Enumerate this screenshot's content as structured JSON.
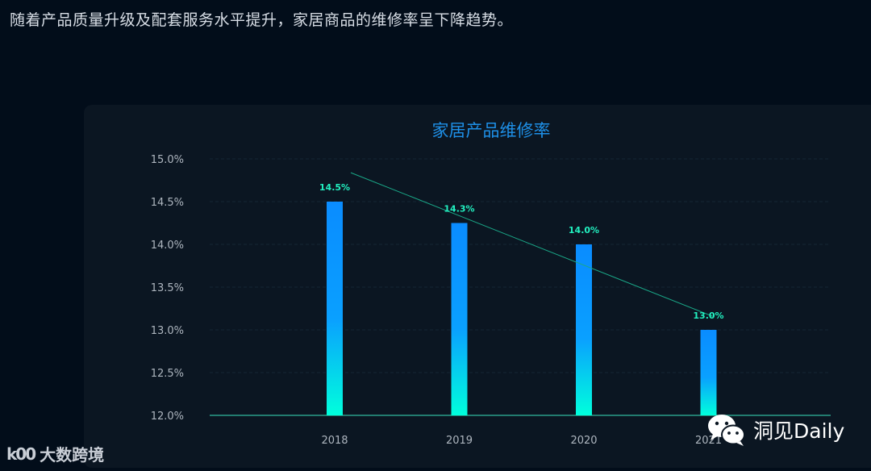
{
  "intro_text": "随着产品质量升级及配套服务水平提升，家居商品的维修率呈下降趋势。",
  "chart_data": {
    "type": "bar",
    "title": "家居产品维修率",
    "categories": [
      "2018",
      "2019",
      "2020",
      "2021"
    ],
    "values": [
      14.5,
      14.25,
      14.0,
      13.0
    ],
    "data_labels": [
      "14.5%",
      "14.3%",
      "14.0%",
      "13.0%"
    ],
    "ylim": [
      12.0,
      15.0
    ],
    "y_ticks": [
      "12.0%",
      "12.5%",
      "13.0%",
      "13.5%",
      "14.0%",
      "14.5%",
      "15.0%"
    ],
    "y_tick_values": [
      12.0,
      12.5,
      13.0,
      13.5,
      14.0,
      14.5,
      15.0
    ],
    "trendline": true,
    "grid": true,
    "colors": {
      "bar_top": "#0a8cff",
      "bar_mid": "#0aa0ff",
      "bar_bottom": "#00ffdc",
      "label": "#22f0c0",
      "trend": "#1aa888",
      "axis": "#2a9d8a",
      "grid": "#142634",
      "tick": "#aeb6bf"
    }
  },
  "watermark_left": {
    "logo": "k00",
    "text": "大数跨境"
  },
  "watermark_right": {
    "icon": "wechat-icon",
    "text": "洞见Daily"
  }
}
